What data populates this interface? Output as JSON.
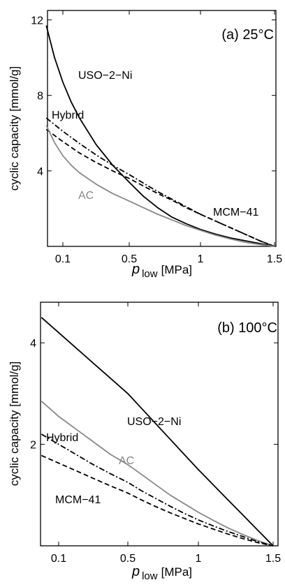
{
  "chart_data": [
    {
      "type": "line",
      "title": "(a) 25°C",
      "xlabel_main": "p",
      "xlabel_sub": "low",
      "xlabel_unit": "[MPa]",
      "ylabel": "cyclic capacity [mmol/g]",
      "xlim": [
        0,
        1.5
      ],
      "ylim": [
        0,
        12.5
      ],
      "xticks": [
        0.1,
        0.5,
        1,
        1.5
      ],
      "xtick_labels": [
        "0.1",
        "0.5",
        "1",
        "1.5"
      ],
      "yticks": [
        4,
        8,
        12
      ],
      "ytick_labels": [
        "4",
        "8",
        "12"
      ],
      "grid": false,
      "series": [
        {
          "name": "USO−2−Ni",
          "color": "#000000",
          "dash": "solid",
          "x": [
            0.0,
            0.05,
            0.1,
            0.15,
            0.2,
            0.3,
            0.4,
            0.5,
            0.6,
            0.7,
            0.8,
            0.9,
            1.0,
            1.1,
            1.2,
            1.3,
            1.4,
            1.5
          ],
          "y": [
            11.7,
            10.0,
            8.7,
            7.65,
            6.8,
            5.4,
            4.3,
            3.4,
            2.65,
            2.05,
            1.55,
            1.2,
            0.9,
            0.65,
            0.45,
            0.3,
            0.15,
            0.0
          ]
        },
        {
          "name": "Hybrid",
          "color": "#000000",
          "dash": "dashdot",
          "x": [
            0.0,
            0.1,
            0.2,
            0.3,
            0.4,
            0.5,
            0.6,
            0.7,
            0.8,
            0.9,
            1.0,
            1.1,
            1.2,
            1.3,
            1.4,
            1.5
          ],
          "y": [
            6.8,
            6.1,
            5.45,
            4.85,
            4.3,
            3.8,
            3.35,
            2.9,
            2.5,
            2.1,
            1.7,
            1.35,
            1.0,
            0.65,
            0.3,
            0.0
          ]
        },
        {
          "name": "MCM−41",
          "color": "#000000",
          "dash": "dashed",
          "x": [
            0.0,
            0.1,
            0.2,
            0.3,
            0.4,
            0.5,
            0.6,
            0.7,
            0.8,
            0.9,
            1.0,
            1.1,
            1.2,
            1.3,
            1.4,
            1.5
          ],
          "y": [
            6.2,
            5.55,
            4.95,
            4.45,
            4.0,
            3.6,
            3.2,
            2.8,
            2.45,
            2.05,
            1.7,
            1.35,
            1.0,
            0.65,
            0.3,
            0.0
          ]
        },
        {
          "name": "AC",
          "color": "#888888",
          "dash": "solid",
          "x": [
            0.0,
            0.05,
            0.1,
            0.15,
            0.2,
            0.3,
            0.4,
            0.5,
            0.6,
            0.7,
            0.8,
            0.9,
            1.0,
            1.1,
            1.2,
            1.3,
            1.4,
            1.5
          ],
          "y": [
            6.4,
            5.5,
            4.8,
            4.3,
            3.9,
            3.3,
            2.8,
            2.4,
            2.05,
            1.7,
            1.4,
            1.1,
            0.85,
            0.6,
            0.4,
            0.22,
            0.1,
            0.0
          ]
        }
      ]
    },
    {
      "type": "line",
      "title": "(b) 100°C",
      "xlabel_main": "p",
      "xlabel_sub": "low",
      "xlabel_unit": "[MPa]",
      "ylabel": "cyclic capacity [mmol/g]",
      "xlim": [
        0,
        1.5
      ],
      "ylim": [
        0,
        4.8
      ],
      "xticks": [
        0.1,
        0.5,
        1,
        1.5
      ],
      "xtick_labels": [
        "0.1",
        "0.5",
        "1",
        "1.5"
      ],
      "yticks": [
        2,
        4
      ],
      "ytick_labels": [
        "2",
        "4"
      ],
      "grid": false,
      "series": [
        {
          "name": "USO−2−Ni",
          "color": "#000000",
          "dash": "solid",
          "x": [
            0.0,
            0.1,
            0.2,
            0.3,
            0.4,
            0.5,
            0.6,
            0.7,
            0.8,
            0.9,
            1.0,
            1.1,
            1.2,
            1.3,
            1.4,
            1.5
          ],
          "y": [
            4.5,
            4.2,
            3.9,
            3.6,
            3.3,
            3.0,
            2.7,
            2.4,
            2.1,
            1.8,
            1.5,
            1.2,
            0.9,
            0.6,
            0.3,
            0.0
          ]
        },
        {
          "name": "AC",
          "color": "#888888",
          "dash": "solid",
          "x": [
            0.0,
            0.1,
            0.2,
            0.3,
            0.4,
            0.5,
            0.6,
            0.7,
            0.8,
            0.9,
            1.0,
            1.1,
            1.2,
            1.3,
            1.4,
            1.5
          ],
          "y": [
            2.85,
            2.55,
            2.3,
            2.05,
            1.8,
            1.6,
            1.4,
            1.2,
            1.0,
            0.83,
            0.66,
            0.5,
            0.35,
            0.22,
            0.1,
            0.0
          ]
        },
        {
          "name": "Hybrid",
          "color": "#000000",
          "dash": "dashdot",
          "x": [
            0.0,
            0.1,
            0.2,
            0.3,
            0.4,
            0.5,
            0.6,
            0.7,
            0.8,
            0.9,
            1.0,
            1.1,
            1.2,
            1.3,
            1.4,
            1.5
          ],
          "y": [
            2.2,
            2.0,
            1.8,
            1.6,
            1.42,
            1.25,
            1.08,
            0.93,
            0.78,
            0.64,
            0.51,
            0.39,
            0.28,
            0.18,
            0.08,
            0.0
          ]
        },
        {
          "name": "MCM−41",
          "color": "#000000",
          "dash": "dashed",
          "x": [
            0.0,
            0.1,
            0.2,
            0.3,
            0.4,
            0.5,
            0.6,
            0.7,
            0.8,
            0.9,
            1.0,
            1.1,
            1.2,
            1.3,
            1.4,
            1.5
          ],
          "y": [
            1.78,
            1.63,
            1.48,
            1.33,
            1.18,
            1.04,
            0.9,
            0.77,
            0.65,
            0.54,
            0.43,
            0.33,
            0.23,
            0.14,
            0.06,
            0.0
          ]
        }
      ]
    }
  ]
}
